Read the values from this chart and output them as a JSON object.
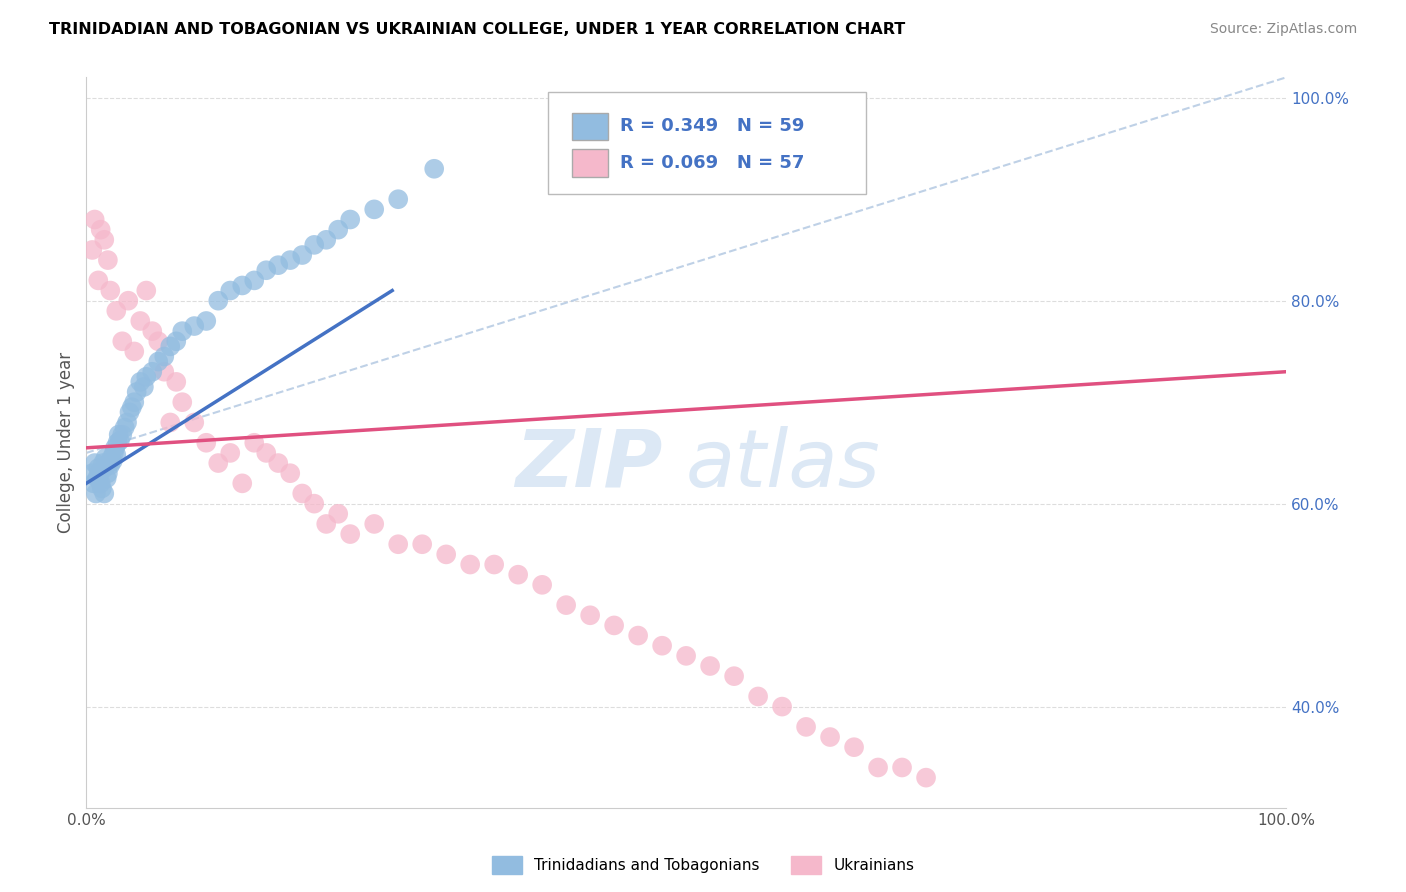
{
  "title": "TRINIDADIAN AND TOBAGONIAN VS UKRAINIAN COLLEGE, UNDER 1 YEAR CORRELATION CHART",
  "source": "Source: ZipAtlas.com",
  "ylabel": "College, Under 1 year",
  "xlim": [
    0.0,
    1.0
  ],
  "ylim": [
    0.3,
    1.02
  ],
  "xtick_positions": [
    0.0,
    1.0
  ],
  "xtick_labels": [
    "0.0%",
    "100.0%"
  ],
  "ytick_positions": [
    0.4,
    0.6,
    0.8,
    1.0
  ],
  "ytick_labels_right": [
    "40.0%",
    "60.0%",
    "80.0%",
    "100.0%"
  ],
  "legend_label1": "Trinidadians and Tobagonians",
  "legend_label2": "Ukrainians",
  "R1": 0.349,
  "N1": 59,
  "R2": 0.069,
  "N2": 57,
  "color_blue": "#92bce0",
  "color_pink": "#f5b8cb",
  "line_blue": "#4472c4",
  "line_pink": "#e05080",
  "line_dashed_color": "#b8cce4",
  "watermark_color": "#dce8f5",
  "title_fontsize": 11.5,
  "source_fontsize": 10,
  "tick_fontsize": 11,
  "right_tick_color": "#4472c4",
  "tri_x": [
    0.005,
    0.006,
    0.007,
    0.008,
    0.009,
    0.01,
    0.01,
    0.011,
    0.012,
    0.013,
    0.014,
    0.015,
    0.015,
    0.016,
    0.017,
    0.018,
    0.019,
    0.02,
    0.021,
    0.022,
    0.023,
    0.024,
    0.025,
    0.026,
    0.027,
    0.028,
    0.03,
    0.032,
    0.034,
    0.036,
    0.038,
    0.04,
    0.042,
    0.045,
    0.048,
    0.05,
    0.055,
    0.06,
    0.065,
    0.07,
    0.075,
    0.08,
    0.09,
    0.1,
    0.11,
    0.12,
    0.13,
    0.14,
    0.15,
    0.16,
    0.17,
    0.18,
    0.19,
    0.2,
    0.21,
    0.22,
    0.24,
    0.26,
    0.29
  ],
  "tri_y": [
    0.63,
    0.62,
    0.64,
    0.61,
    0.625,
    0.635,
    0.625,
    0.63,
    0.62,
    0.615,
    0.64,
    0.635,
    0.61,
    0.645,
    0.625,
    0.63,
    0.64,
    0.638,
    0.645,
    0.642,
    0.65,
    0.655,
    0.648,
    0.66,
    0.668,
    0.662,
    0.668,
    0.675,
    0.68,
    0.69,
    0.695,
    0.7,
    0.71,
    0.72,
    0.715,
    0.725,
    0.73,
    0.74,
    0.745,
    0.755,
    0.76,
    0.77,
    0.775,
    0.78,
    0.8,
    0.81,
    0.815,
    0.82,
    0.83,
    0.835,
    0.84,
    0.845,
    0.855,
    0.86,
    0.87,
    0.88,
    0.89,
    0.9,
    0.93
  ],
  "ukr_x": [
    0.005,
    0.007,
    0.01,
    0.012,
    0.015,
    0.018,
    0.02,
    0.025,
    0.03,
    0.035,
    0.04,
    0.045,
    0.05,
    0.055,
    0.06,
    0.065,
    0.07,
    0.075,
    0.08,
    0.09,
    0.1,
    0.11,
    0.12,
    0.13,
    0.14,
    0.15,
    0.16,
    0.17,
    0.18,
    0.19,
    0.2,
    0.21,
    0.22,
    0.24,
    0.26,
    0.28,
    0.3,
    0.32,
    0.34,
    0.36,
    0.38,
    0.4,
    0.42,
    0.44,
    0.46,
    0.48,
    0.5,
    0.52,
    0.54,
    0.56,
    0.58,
    0.6,
    0.62,
    0.64,
    0.66,
    0.68,
    0.7
  ],
  "ukr_y": [
    0.85,
    0.88,
    0.82,
    0.87,
    0.86,
    0.84,
    0.81,
    0.79,
    0.76,
    0.8,
    0.75,
    0.78,
    0.81,
    0.77,
    0.76,
    0.73,
    0.68,
    0.72,
    0.7,
    0.68,
    0.66,
    0.64,
    0.65,
    0.62,
    0.66,
    0.65,
    0.64,
    0.63,
    0.61,
    0.6,
    0.58,
    0.59,
    0.57,
    0.58,
    0.56,
    0.56,
    0.55,
    0.54,
    0.54,
    0.53,
    0.52,
    0.5,
    0.49,
    0.48,
    0.47,
    0.46,
    0.45,
    0.44,
    0.43,
    0.41,
    0.4,
    0.38,
    0.37,
    0.36,
    0.34,
    0.34,
    0.33
  ],
  "blue_line_x0": 0.0,
  "blue_line_y0": 0.62,
  "blue_line_x1": 0.255,
  "blue_line_y1": 0.81,
  "pink_line_x0": 0.0,
  "pink_line_y0": 0.655,
  "pink_line_x1": 1.0,
  "pink_line_y1": 0.73,
  "dash_line_x0": 0.55,
  "dash_line_y0": 1.01,
  "dash_line_x1": 1.0,
  "dash_line_y1": 1.01
}
